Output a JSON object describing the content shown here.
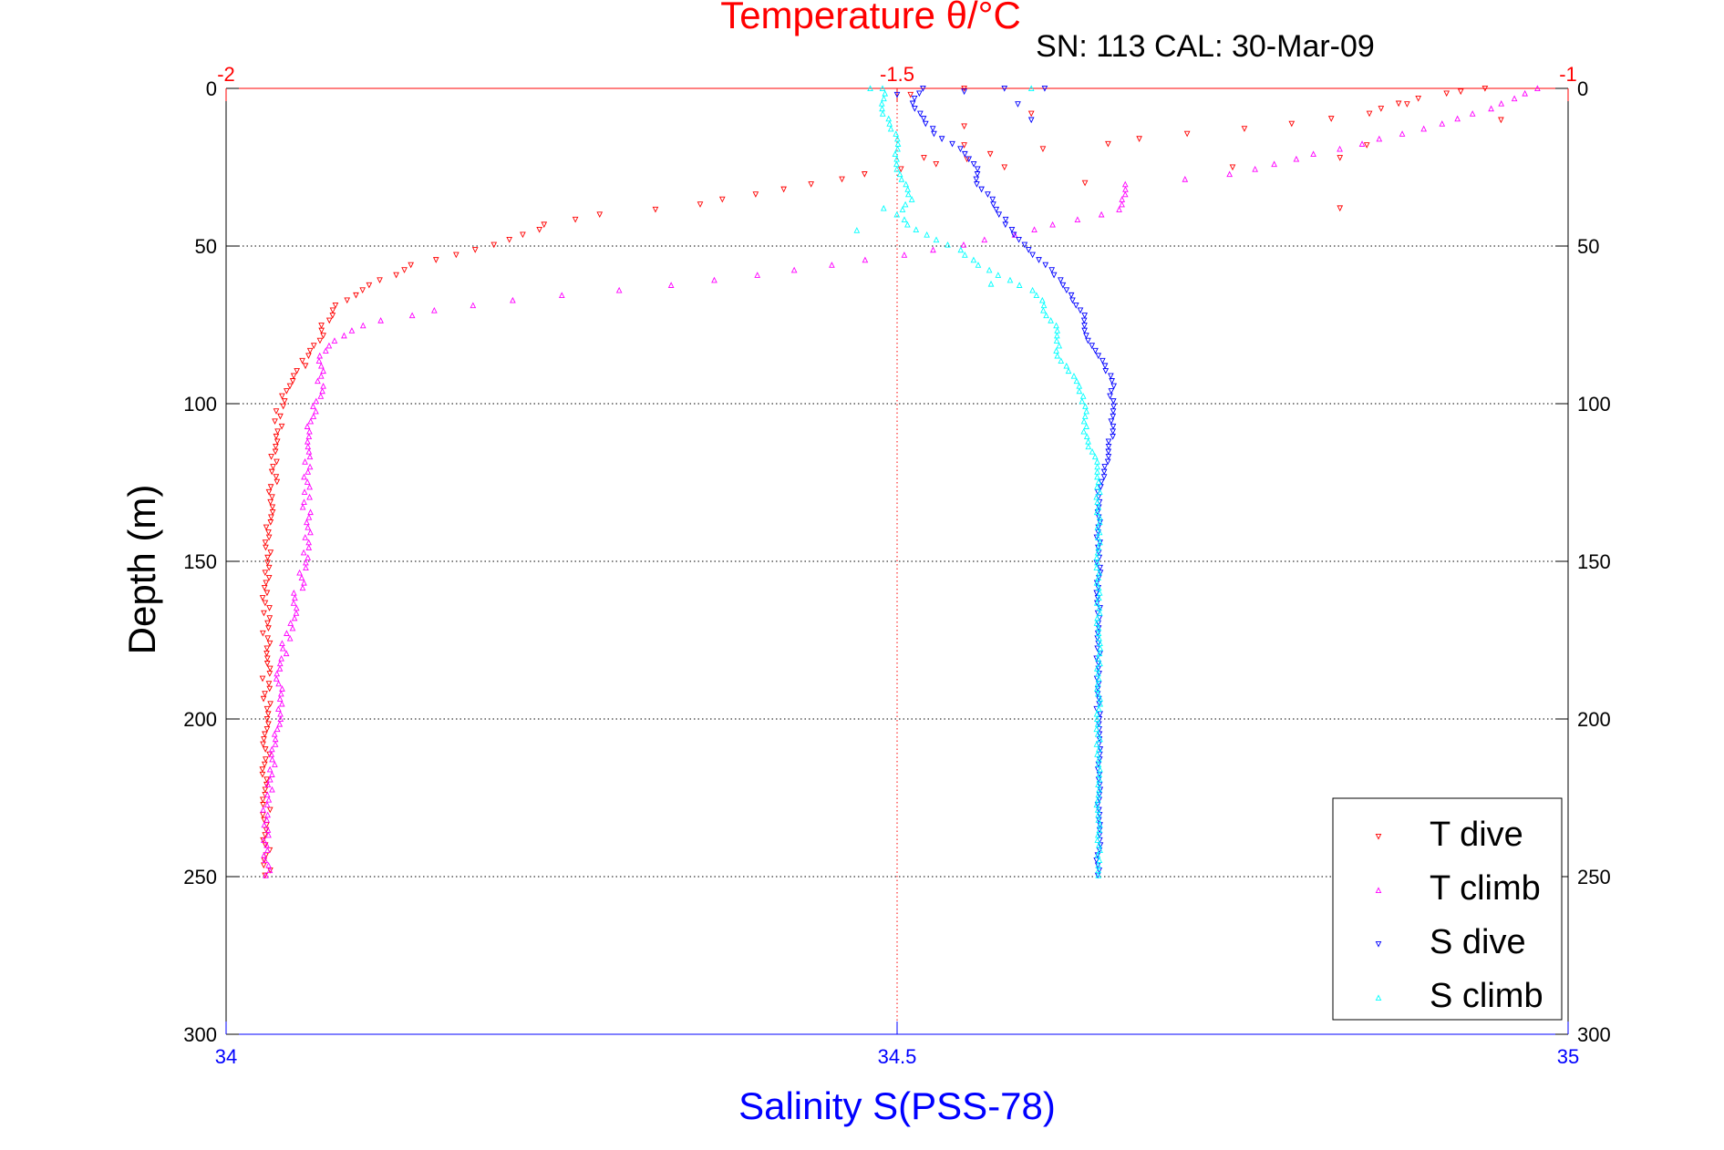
{
  "chart_data": {
    "type": "scatter",
    "title": "Temperature θ/°C",
    "subtitle": "SN: 113  CAL: 30-Mar-09",
    "xlabel": "Salinity S(PSS-78)",
    "ylabel": "Depth (m)",
    "x_bottom": {
      "label": "Salinity S(PSS-78)",
      "range": [
        34,
        35
      ],
      "ticks": [
        "34",
        "34.5",
        "35"
      ]
    },
    "x_top": {
      "label": "Temperature θ/°C",
      "range": [
        -2,
        -1
      ],
      "ticks": [
        "-2",
        "-1.5",
        "-1"
      ]
    },
    "y": {
      "label": "Depth (m)",
      "range": [
        0,
        300
      ],
      "reversed": true,
      "ticks": [
        "0",
        "50",
        "100",
        "150",
        "200",
        "250",
        "300"
      ]
    },
    "grid": true,
    "legend_placement": "bottom-right",
    "colors": {
      "temperature_axis": "#ff0000",
      "salinity_axis": "#0000ff",
      "t_dive": "#ff0000",
      "t_climb": "#ff00ff",
      "s_dive": "#0000ff",
      "s_climb": "#00ffff"
    },
    "series": [
      {
        "name": "T dive",
        "axis": "temperature",
        "marker": "triangle-down",
        "profile": [
          [
            -1.06,
            0
          ],
          [
            -1.1,
            2
          ],
          [
            -1.12,
            4
          ],
          [
            -1.15,
            8
          ],
          [
            -1.22,
            12
          ],
          [
            -1.3,
            15
          ],
          [
            -1.35,
            18
          ],
          [
            -1.42,
            20
          ],
          [
            -1.47,
            24
          ],
          [
            -1.52,
            27
          ],
          [
            -1.56,
            30
          ],
          [
            -1.6,
            33
          ],
          [
            -1.65,
            37
          ],
          [
            -1.72,
            40
          ],
          [
            -1.76,
            43
          ],
          [
            -1.78,
            47
          ],
          [
            -1.82,
            52
          ],
          [
            -1.86,
            56
          ],
          [
            -1.88,
            60
          ],
          [
            -1.9,
            64
          ],
          [
            -1.92,
            70
          ],
          [
            -1.93,
            78
          ],
          [
            -1.94,
            86
          ],
          [
            -1.95,
            92
          ],
          [
            -1.96,
            100
          ],
          [
            -1.97,
            150
          ],
          [
            -1.97,
            200
          ],
          [
            -1.97,
            250
          ]
        ],
        "outliers": [
          [
            -1.49,
            2
          ],
          [
            -1.45,
            0
          ],
          [
            -1.4,
            8
          ],
          [
            -1.45,
            12
          ],
          [
            -1.48,
            22
          ],
          [
            -1.45,
            18
          ],
          [
            -1.42,
            25
          ],
          [
            -1.36,
            30
          ],
          [
            -1.25,
            25
          ],
          [
            -1.17,
            22
          ],
          [
            -1.17,
            38
          ],
          [
            -1.15,
            18
          ],
          [
            -1.05,
            10
          ],
          [
            -1.12,
            5
          ],
          [
            -1.08,
            1
          ]
        ]
      },
      {
        "name": "T climb",
        "axis": "temperature",
        "marker": "triangle-up",
        "profile": [
          [
            -1.02,
            0
          ],
          [
            -1.05,
            5
          ],
          [
            -1.1,
            12
          ],
          [
            -1.16,
            18
          ],
          [
            -1.22,
            24
          ],
          [
            -1.26,
            28
          ],
          [
            -1.33,
            30
          ],
          [
            -1.33,
            38
          ],
          [
            -1.38,
            43
          ],
          [
            -1.42,
            47
          ],
          [
            -1.48,
            52
          ],
          [
            -1.55,
            56
          ],
          [
            -1.62,
            60
          ],
          [
            -1.68,
            63
          ],
          [
            -1.76,
            66
          ],
          [
            -1.84,
            70
          ],
          [
            -1.9,
            75
          ],
          [
            -1.92,
            80
          ],
          [
            -1.93,
            86
          ],
          [
            -1.93,
            95
          ],
          [
            -1.94,
            110
          ],
          [
            -1.94,
            130
          ],
          [
            -1.94,
            150
          ],
          [
            -1.95,
            165
          ],
          [
            -1.96,
            185
          ],
          [
            -1.96,
            200
          ],
          [
            -1.97,
            230
          ],
          [
            -1.97,
            250
          ]
        ]
      },
      {
        "name": "S dive",
        "axis": "salinity",
        "marker": "triangle-down",
        "profile": [
          [
            34.52,
            0
          ],
          [
            34.51,
            5
          ],
          [
            34.52,
            10
          ],
          [
            34.53,
            15
          ],
          [
            34.55,
            20
          ],
          [
            34.56,
            25
          ],
          [
            34.56,
            30
          ],
          [
            34.57,
            35
          ],
          [
            34.58,
            42
          ],
          [
            34.59,
            48
          ],
          [
            34.6,
            52
          ],
          [
            34.61,
            56
          ],
          [
            34.62,
            60
          ],
          [
            34.63,
            66
          ],
          [
            34.64,
            72
          ],
          [
            34.64,
            78
          ],
          [
            34.65,
            85
          ],
          [
            34.66,
            92
          ],
          [
            34.66,
            98
          ],
          [
            34.66,
            110
          ],
          [
            34.65,
            130
          ],
          [
            34.65,
            150
          ],
          [
            34.65,
            200
          ],
          [
            34.65,
            250
          ]
        ],
        "outliers": [
          [
            34.5,
            2
          ],
          [
            34.55,
            1
          ],
          [
            34.58,
            0
          ],
          [
            34.61,
            0
          ],
          [
            34.59,
            5
          ],
          [
            34.6,
            10
          ]
        ]
      },
      {
        "name": "S climb",
        "axis": "salinity",
        "marker": "triangle-up",
        "profile": [
          [
            34.49,
            0
          ],
          [
            34.49,
            8
          ],
          [
            34.5,
            15
          ],
          [
            34.5,
            25
          ],
          [
            34.51,
            35
          ],
          [
            34.5,
            40
          ],
          [
            34.51,
            44
          ],
          [
            34.53,
            48
          ],
          [
            34.55,
            52
          ],
          [
            34.56,
            56
          ],
          [
            34.58,
            60
          ],
          [
            34.6,
            64
          ],
          [
            34.61,
            68
          ],
          [
            34.61,
            72
          ],
          [
            34.62,
            76
          ],
          [
            34.62,
            80
          ],
          [
            34.62,
            85
          ],
          [
            34.63,
            90
          ],
          [
            34.64,
            100
          ],
          [
            34.64,
            110
          ],
          [
            34.65,
            120
          ],
          [
            34.65,
            130
          ],
          [
            34.65,
            150
          ],
          [
            34.65,
            200
          ],
          [
            34.65,
            250
          ]
        ],
        "outliers": [
          [
            34.48,
            0
          ],
          [
            34.6,
            0
          ],
          [
            34.47,
            45
          ],
          [
            34.49,
            38
          ],
          [
            34.57,
            62
          ]
        ]
      }
    ],
    "legend": {
      "entries": [
        "T dive",
        "T climb",
        "S dive",
        "S climb"
      ]
    }
  }
}
